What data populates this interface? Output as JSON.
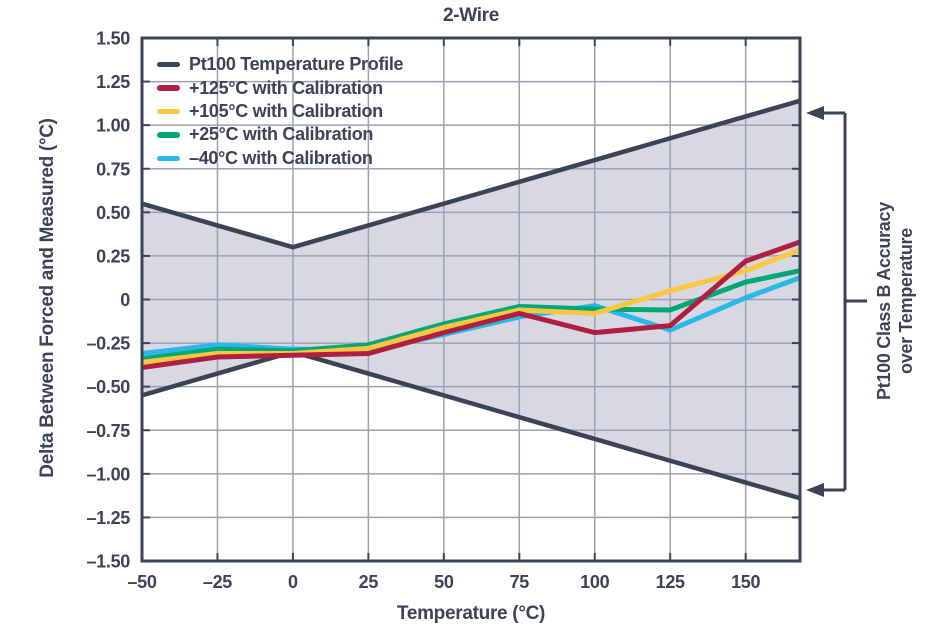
{
  "title": "2-Wire",
  "colors": {
    "ink": "#3b4356",
    "grid": "#9ba2b4",
    "band_fill": "#d7d8e2",
    "background": "#ffffff",
    "series_navy": "#3b4356",
    "series_red": "#b01f41",
    "series_yellow": "#fcc63f",
    "series_green": "#00a877",
    "series_cyan": "#29b8ea"
  },
  "legend": {
    "items": [
      {
        "label": "Pt100 Temperature Profile",
        "color": "#3b4356"
      },
      {
        "label": "+125°C with Calibration",
        "color": "#b01f41"
      },
      {
        "label": "+105°C with Calibration",
        "color": "#fcc63f"
      },
      {
        "label": "+25°C with Calibration",
        "color": "#00a877"
      },
      {
        "label": "–40°C with Calibration",
        "color": "#29b8ea"
      }
    ]
  },
  "axes": {
    "x": {
      "title": "Temperature (°C)",
      "tick_values": [
        -50,
        -25,
        0,
        25,
        50,
        75,
        100,
        125,
        150
      ],
      "tick_labels": [
        "–50",
        "–25",
        "0",
        "25",
        "50",
        "75",
        "100",
        "125",
        "150"
      ]
    },
    "y": {
      "title": "Delta Between Forced and Measured (°C)",
      "tick_values": [
        1.5,
        1.25,
        1.0,
        0.75,
        0.5,
        0.25,
        0,
        -0.25,
        -0.5,
        -0.75,
        -1.0,
        -1.25,
        -1.5
      ],
      "tick_labels": [
        "1.50",
        "1.25",
        "1.00",
        "0.75",
        "0.50",
        "0.25",
        "0",
        "–0.25",
        "–0.50",
        "–0.75",
        "–1.00",
        "–1.25",
        "–1.50"
      ]
    }
  },
  "annotation": {
    "line1": "Pt100 Class B Accuracy",
    "line2": "over Temperature"
  },
  "chart_data": {
    "type": "line",
    "title": "2-Wire",
    "xlabel": "Temperature (°C)",
    "ylabel": "Delta Between Forced and Measured (°C)",
    "xlim": [
      -50,
      168
    ],
    "ylim": [
      -1.5,
      1.5
    ],
    "grid": true,
    "legend_position": "top-left",
    "x": [
      -50,
      -25,
      0,
      25,
      50,
      75,
      100,
      125,
      150,
      168
    ],
    "series": [
      {
        "name": "Pt100 Temperature Profile (upper Class B limit)",
        "color_key": "series_navy",
        "role": "envelope-upper",
        "values": [
          0.55,
          0.425,
          0.3,
          0.425,
          0.55,
          0.675,
          0.8,
          0.925,
          1.05,
          1.14
        ]
      },
      {
        "name": "Pt100 Temperature Profile (lower Class B limit)",
        "color_key": "series_navy",
        "role": "envelope-lower",
        "values": [
          -0.55,
          -0.425,
          -0.3,
          -0.425,
          -0.55,
          -0.675,
          -0.8,
          -0.925,
          -1.05,
          -1.14
        ]
      },
      {
        "name": "+125°C with Calibration",
        "color_key": "series_red",
        "role": "line",
        "values": [
          -0.39,
          -0.33,
          -0.32,
          -0.31,
          -0.19,
          -0.08,
          -0.19,
          -0.15,
          0.22,
          0.33
        ]
      },
      {
        "name": "+105°C with Calibration",
        "color_key": "series_yellow",
        "role": "line",
        "values": [
          -0.36,
          -0.31,
          -0.31,
          -0.28,
          -0.16,
          -0.06,
          -0.08,
          0.05,
          0.165,
          0.285
        ]
      },
      {
        "name": "+25°C with Calibration",
        "color_key": "series_green",
        "role": "line",
        "values": [
          -0.34,
          -0.285,
          -0.295,
          -0.26,
          -0.14,
          -0.04,
          -0.055,
          -0.06,
          0.1,
          0.165
        ]
      },
      {
        "name": "–40°C with Calibration",
        "color_key": "series_cyan",
        "role": "line",
        "values": [
          -0.31,
          -0.26,
          -0.285,
          -0.29,
          -0.2,
          -0.1,
          -0.035,
          -0.175,
          0.01,
          0.125
        ]
      }
    ],
    "band": {
      "between": "Pt100 Class B envelope lines",
      "fill_key": "band_fill",
      "label": "Pt100 Class B Accuracy over Temperature"
    }
  }
}
